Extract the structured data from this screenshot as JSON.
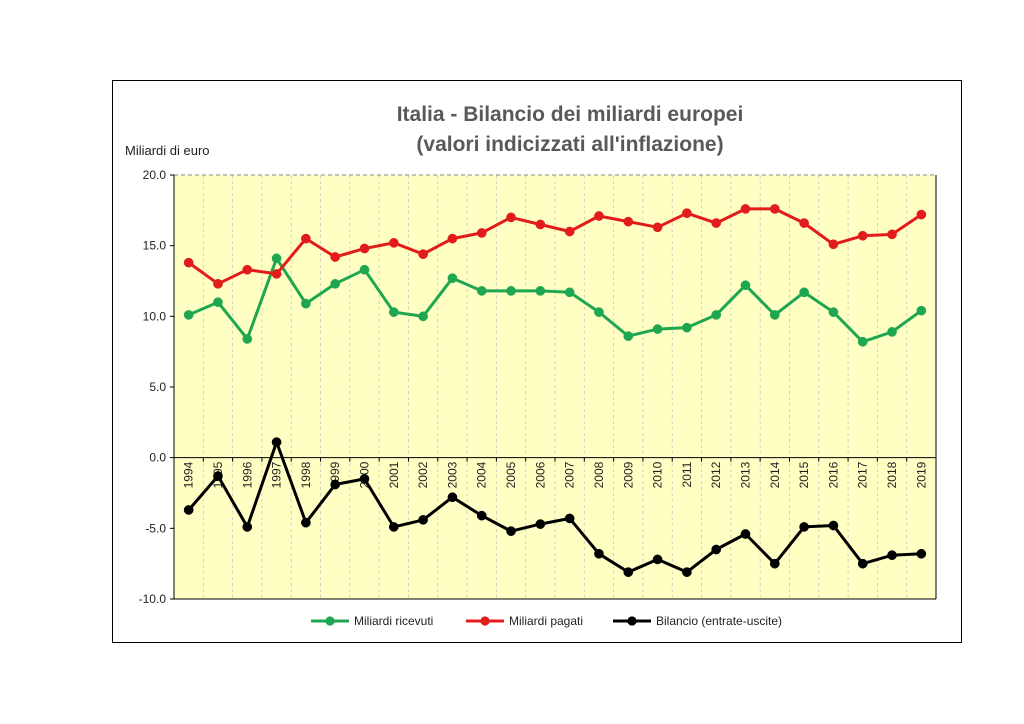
{
  "chart_data": {
    "type": "line",
    "title_lines": [
      "Italia - Bilancio dei miliardi europei",
      "(valori indicizzati all'inflazione)"
    ],
    "ylabel": "Miliardi di euro",
    "ylim": [
      -10,
      20
    ],
    "yticks": [
      "20.0",
      "15.0",
      "10.0",
      "5.0",
      "0.0",
      "-5.0",
      "-10.0"
    ],
    "ytick_values": [
      20,
      15,
      10,
      5,
      0,
      -5,
      -10
    ],
    "categories": [
      "1994",
      "1995",
      "1996",
      "1997",
      "1998",
      "1999",
      "2000",
      "2001",
      "2002",
      "2003",
      "2004",
      "2005",
      "2006",
      "2007",
      "2008",
      "2009",
      "2010",
      "2011",
      "2012",
      "2013",
      "2014",
      "2015",
      "2016",
      "2017",
      "2018",
      "2019"
    ],
    "grid": true,
    "plot_background": "#ffffc4",
    "legend_position": "bottom",
    "series": [
      {
        "name": "Miliardi ricevuti",
        "color": "#1fa650",
        "values": [
          10.1,
          11.0,
          8.4,
          14.1,
          10.9,
          12.3,
          13.3,
          10.3,
          10.0,
          12.7,
          11.8,
          11.8,
          11.8,
          11.7,
          10.3,
          8.6,
          9.1,
          9.2,
          10.1,
          12.2,
          10.1,
          11.7,
          10.3,
          8.2,
          8.9,
          10.4
        ]
      },
      {
        "name": "Miliardi pagati",
        "color": "#e21b1b",
        "values": [
          13.8,
          12.3,
          13.3,
          13.0,
          15.5,
          14.2,
          14.8,
          15.2,
          14.4,
          15.5,
          15.9,
          17.0,
          16.5,
          16.0,
          17.1,
          16.7,
          16.3,
          17.3,
          16.6,
          17.6,
          17.6,
          16.6,
          15.1,
          15.7,
          15.8,
          17.2
        ]
      },
      {
        "name": "Bilancio (entrate-uscite)",
        "color": "#000000",
        "values": [
          -3.7,
          -1.3,
          -4.9,
          1.1,
          -4.6,
          -1.9,
          -1.5,
          -4.9,
          -4.4,
          -2.8,
          -4.1,
          -5.2,
          -4.7,
          -4.3,
          -6.8,
          -8.1,
          -7.2,
          -8.1,
          -6.5,
          -5.4,
          -7.5,
          -4.9,
          -4.8,
          -7.5,
          -6.9,
          -6.8
        ]
      }
    ]
  }
}
